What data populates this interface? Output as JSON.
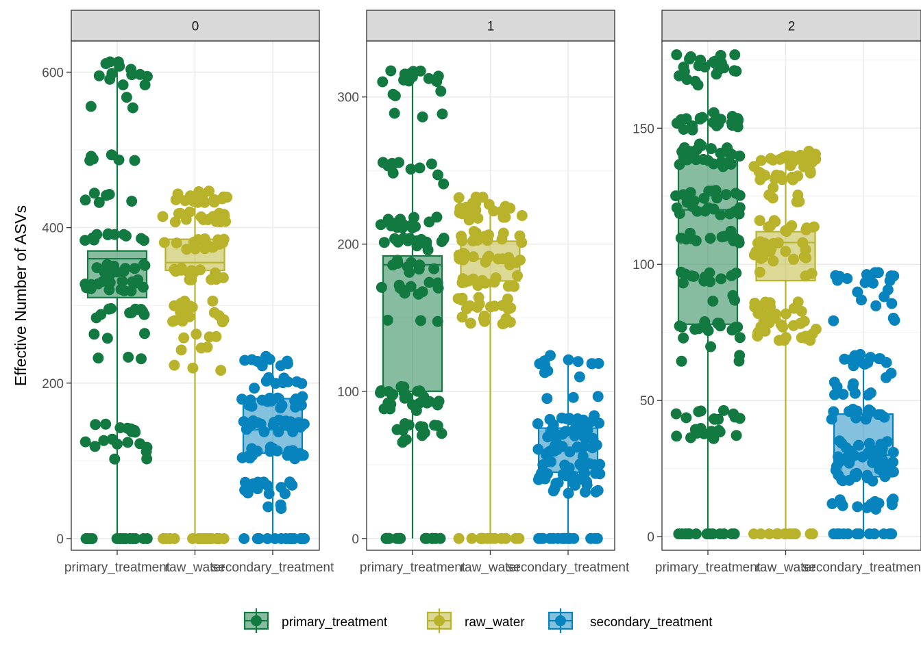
{
  "chart_data": {
    "type": "box",
    "ylabel": "Effective Number of ASVs",
    "legend": {
      "position": "bottom",
      "entries": [
        "primary_treatment",
        "raw_water",
        "secondary_treatment"
      ]
    },
    "colors": {
      "primary_treatment": "#127a41",
      "raw_water": "#b8b32b",
      "secondary_treatment": "#0784bd"
    },
    "grid": true,
    "facets": [
      {
        "label": "0",
        "ylim": [
          -15,
          640
        ],
        "yticks": [
          0,
          200,
          400,
          600
        ],
        "categories": [
          "primary_treatment",
          "raw_water",
          "secondary_treatment"
        ],
        "boxes": [
          {
            "category": "primary_treatment",
            "min": 0,
            "q1": 310,
            "median": 360,
            "q3": 370,
            "max": 610
          },
          {
            "category": "raw_water",
            "min": 0,
            "q1": 345,
            "median": 355,
            "q3": 385,
            "max": 445
          },
          {
            "category": "secondary_treatment",
            "min": 0,
            "q1": 110,
            "median": 140,
            "q3": 180,
            "max": 235
          }
        ],
        "bands": {
          "primary_treatment": [
            [
              0,
              0.14
            ],
            [
              104,
              0.02
            ],
            [
              125,
              0.07
            ],
            [
              140,
              0.08
            ],
            [
              233,
              0.01
            ],
            [
              260,
              0.02
            ],
            [
              290,
              0.1
            ],
            [
              325,
              0.15
            ],
            [
              345,
              0.12
            ],
            [
              390,
              0.1
            ],
            [
              440,
              0.05
            ],
            [
              490,
              0.05
            ],
            [
              560,
              0.02
            ],
            [
              585,
              0.02
            ],
            [
              600,
              0.06
            ],
            [
              608,
              0.03
            ]
          ],
          "raw_water": [
            [
              0,
              0.15
            ],
            [
              222,
              0.01
            ],
            [
              245,
              0.02
            ],
            [
              265,
              0.04
            ],
            [
              285,
              0.08
            ],
            [
              300,
              0.08
            ],
            [
              340,
              0.14
            ],
            [
              380,
              0.16
            ],
            [
              415,
              0.16
            ],
            [
              440,
              0.16
            ]
          ],
          "secondary_treatment": [
            [
              0,
              0.14
            ],
            [
              40,
              0.03
            ],
            [
              65,
              0.14
            ],
            [
              110,
              0.16
            ],
            [
              145,
              0.22
            ],
            [
              175,
              0.15
            ],
            [
              200,
              0.08
            ],
            [
              228,
              0.08
            ]
          ]
        }
      },
      {
        "label": "1",
        "ylim": [
          -8,
          338
        ],
        "yticks": [
          0,
          100,
          200,
          300
        ],
        "categories": [
          "primary_treatment",
          "raw_water",
          "secondary_treatment"
        ],
        "boxes": [
          {
            "category": "primary_treatment",
            "min": 0,
            "q1": 100,
            "median": 186,
            "q3": 192,
            "max": 310
          },
          {
            "category": "raw_water",
            "min": 0,
            "q1": 175,
            "median": 190,
            "q3": 202,
            "max": 225
          },
          {
            "category": "secondary_treatment",
            "min": 0,
            "q1": 45,
            "median": 60,
            "q3": 75,
            "max": 122
          }
        ],
        "bands": {
          "primary_treatment": [
            [
              0,
              0.12
            ],
            [
              67,
              0.02
            ],
            [
              74,
              0.1
            ],
            [
              90,
              0.1
            ],
            [
              99,
              0.12
            ],
            [
              150,
              0.01
            ],
            [
              170,
              0.1
            ],
            [
              185,
              0.08
            ],
            [
              200,
              0.16
            ],
            [
              215,
              0.14
            ],
            [
              245,
              0.03
            ],
            [
              255,
              0.07
            ],
            [
              285,
              0.01
            ],
            [
              300,
              0.02
            ],
            [
              314,
              0.12
            ]
          ],
          "raw_water": [
            [
              0,
              0.12
            ],
            [
              143,
              0.01
            ],
            [
              150,
              0.05
            ],
            [
              160,
              0.14
            ],
            [
              175,
              0.14
            ],
            [
              190,
              0.15
            ],
            [
              205,
              0.14
            ],
            [
              220,
              0.12
            ],
            [
              228,
              0.1
            ]
          ],
          "secondary_treatment": [
            [
              0,
              0.14
            ],
            [
              32,
              0.06
            ],
            [
              40,
              0.15
            ],
            [
              48,
              0.16
            ],
            [
              60,
              0.14
            ],
            [
              72,
              0.16
            ],
            [
              80,
              0.12
            ],
            [
              98,
              0.01
            ],
            [
              110,
              0.01
            ],
            [
              121,
              0.1
            ]
          ]
        }
      },
      {
        "label": "2",
        "ylim": [
          -5,
          182
        ],
        "yticks": [
          0,
          50,
          100,
          150
        ],
        "categories": [
          "primary_treatment",
          "raw_water",
          "secondary_treatment"
        ],
        "boxes": [
          {
            "category": "primary_treatment",
            "min": 0,
            "q1": 78,
            "median": 120,
            "q3": 138,
            "max": 175
          },
          {
            "category": "raw_water",
            "min": 0,
            "q1": 94,
            "median": 108,
            "q3": 112,
            "max": 140
          },
          {
            "category": "secondary_treatment",
            "min": 0,
            "q1": 22,
            "median": 30,
            "q3": 45,
            "max": 65
          }
        ],
        "bands": {
          "primary_treatment": [
            [
              1,
              0.12
            ],
            [
              38,
              0.1
            ],
            [
              45,
              0.1
            ],
            [
              66,
              0.01
            ],
            [
              72,
              0.03
            ],
            [
              77,
              0.12
            ],
            [
              88,
              0.02
            ],
            [
              95,
              0.12
            ],
            [
              110,
              0.12
            ],
            [
              120,
              0.12
            ],
            [
              125,
              0.12
            ],
            [
              138,
              0.12
            ],
            [
              142,
              0.12
            ],
            [
              151,
              0.12
            ],
            [
              154,
              0.1
            ],
            [
              166,
              0.01
            ],
            [
              171,
              0.08
            ],
            [
              175,
              0.1
            ]
          ],
          "raw_water": [
            [
              1,
              0.12
            ],
            [
              74,
              0.12
            ],
            [
              79,
              0.12
            ],
            [
              84,
              0.12
            ],
            [
              97,
              0.01
            ],
            [
              103,
              0.12
            ],
            [
              107,
              0.12
            ],
            [
              114,
              0.1
            ],
            [
              123,
              0.02
            ],
            [
              127,
              0.01
            ],
            [
              132,
              0.12
            ],
            [
              137,
              0.12
            ],
            [
              140,
              0.12
            ]
          ],
          "secondary_treatment": [
            [
              1,
              0.12
            ],
            [
              12,
              0.12
            ],
            [
              22,
              0.12
            ],
            [
              26,
              0.12
            ],
            [
              30,
              0.12
            ],
            [
              33,
              0.12
            ],
            [
              45,
              0.12
            ],
            [
              54,
              0.08
            ],
            [
              58,
              0.02
            ],
            [
              65,
              0.12
            ],
            [
              79,
              0.01
            ],
            [
              87,
              0.01
            ],
            [
              90,
              0.02
            ],
            [
              95,
              0.12
            ]
          ]
        }
      }
    ]
  }
}
